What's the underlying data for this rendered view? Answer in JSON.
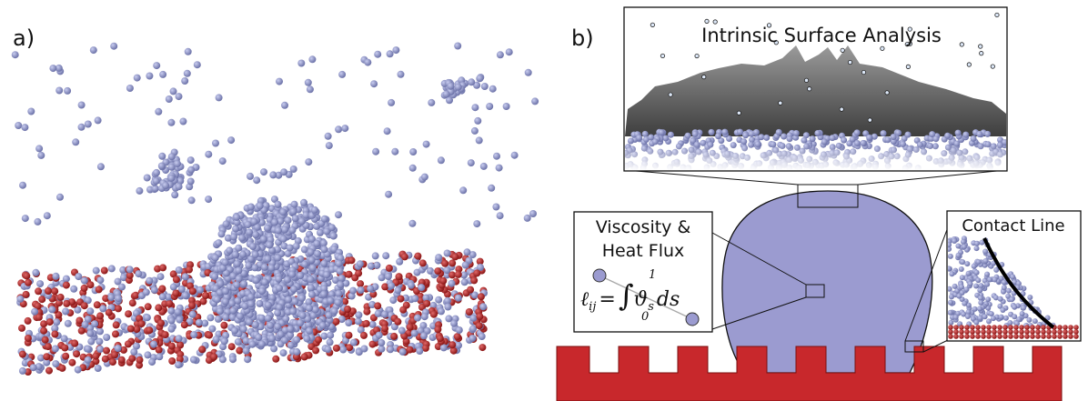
{
  "panel_a": {
    "label": "a)"
  },
  "panel_b": {
    "label": "b)",
    "insets": {
      "surface": {
        "title": "Intrinsic Surface Analysis"
      },
      "viscosity": {
        "line1": "Viscosity &",
        "line2": "Heat Flux",
        "equation": {
          "lhs": "ℓ",
          "lhs_sub": "ij",
          "equals": "=",
          "integral": "∫",
          "upper": "1",
          "lower": "0",
          "integrand": "ϑ",
          "integrand_sub": "s",
          "differential": "ds"
        }
      },
      "contact": {
        "title": "Contact Line"
      }
    }
  }
}
